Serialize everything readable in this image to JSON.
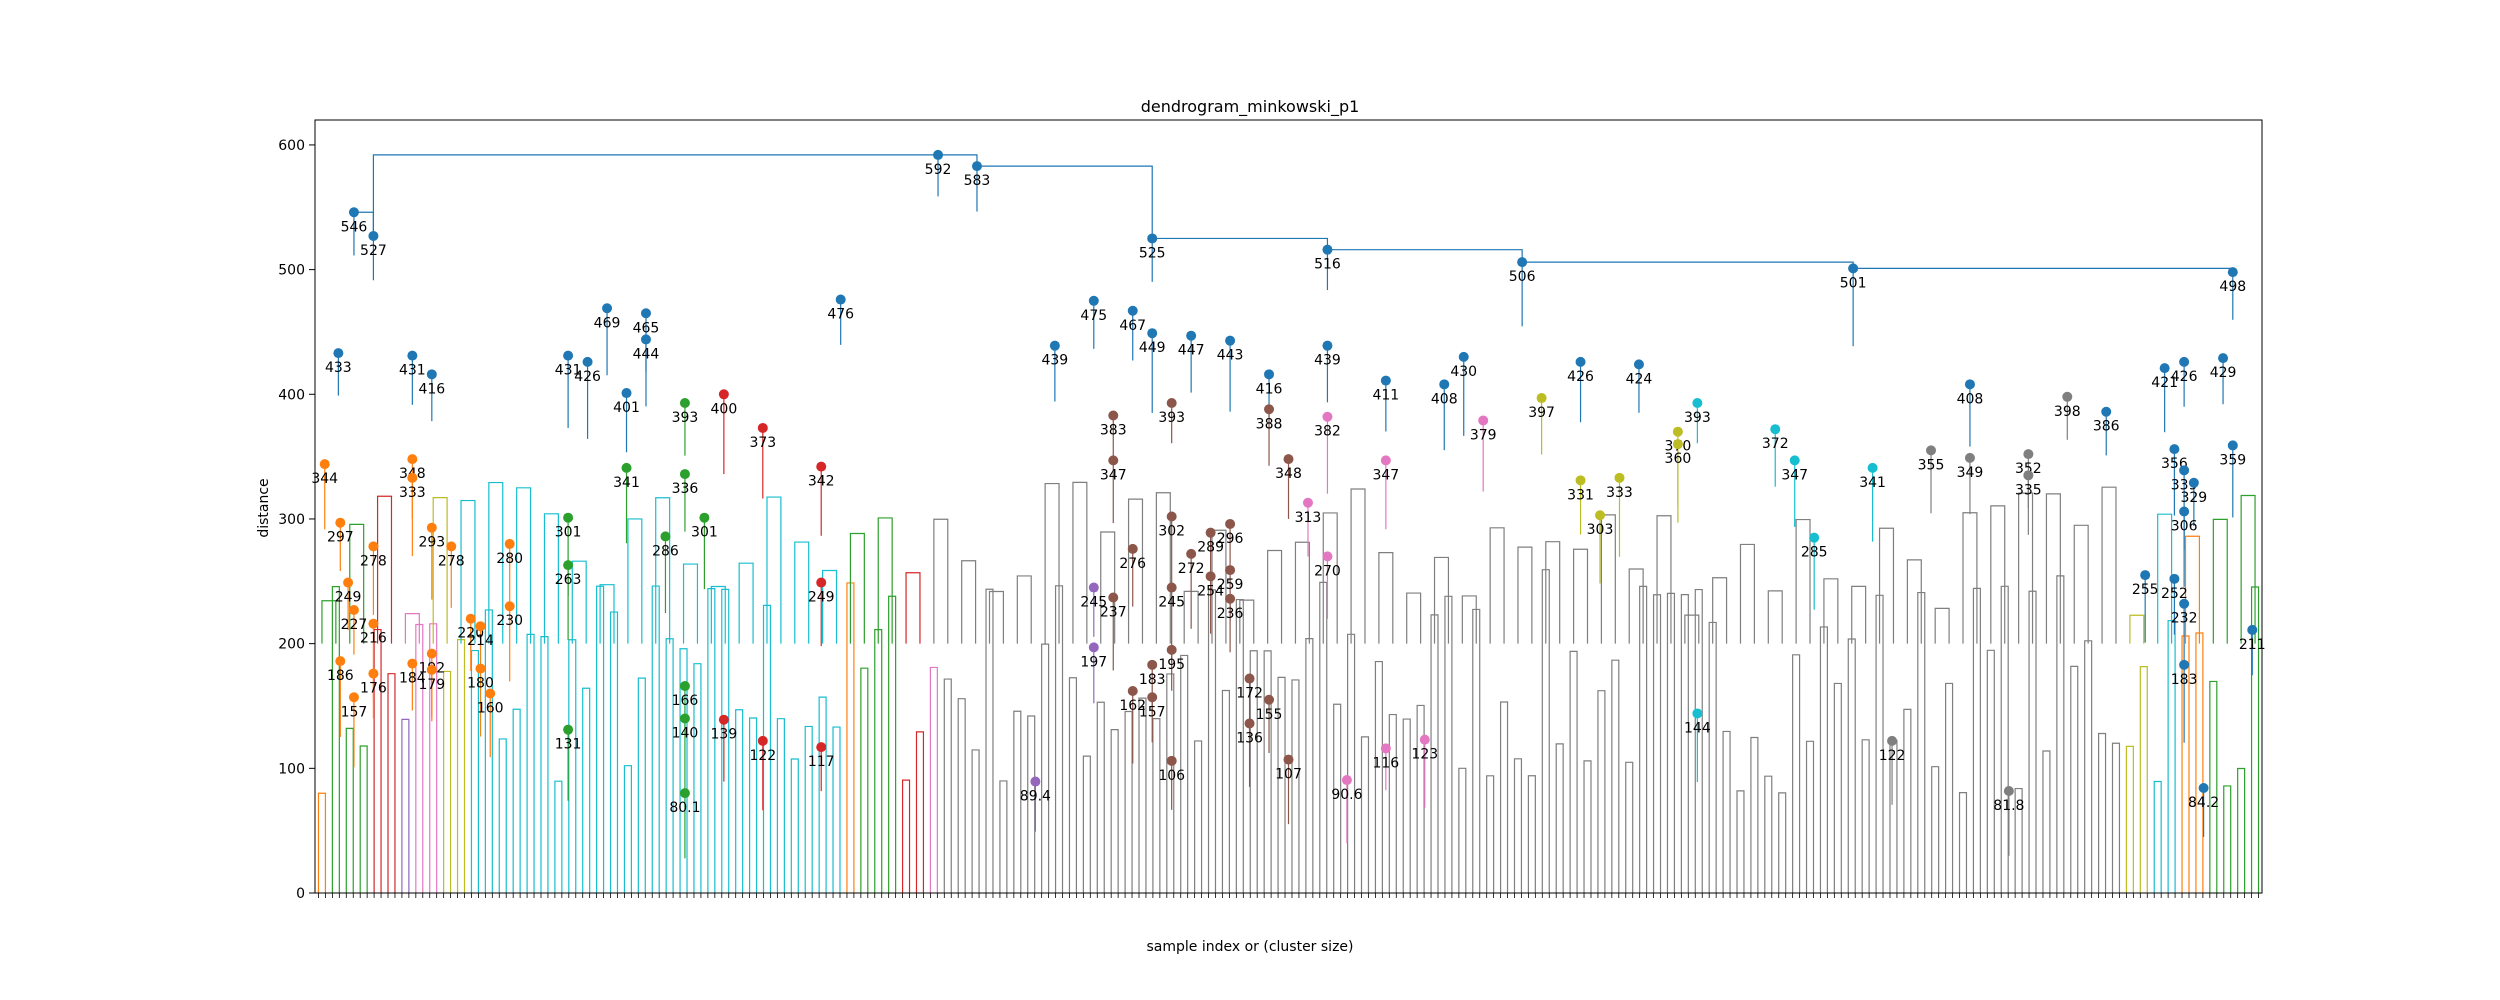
{
  "chart_data": {
    "type": "dendrogram",
    "title": "dendrogram_minkowski_p1",
    "xlabel": "sample index or (cluster size)",
    "ylabel": "distance",
    "ylim": [
      0,
      620
    ],
    "yticks": [
      0,
      100,
      200,
      300,
      400,
      500,
      600
    ],
    "grid": false,
    "leaf_count": 280,
    "annotated_merges": [
      {
        "label": "592",
        "height": 592,
        "x": 0.32
      },
      {
        "label": "583",
        "height": 583,
        "x": 0.34
      },
      {
        "label": "546",
        "height": 546,
        "x": 0.02
      },
      {
        "label": "527",
        "height": 527,
        "x": 0.03
      },
      {
        "label": "525",
        "height": 525,
        "x": 0.43
      },
      {
        "label": "516",
        "height": 516,
        "x": 0.52
      },
      {
        "label": "506",
        "height": 506,
        "x": 0.62
      },
      {
        "label": "501",
        "height": 501,
        "x": 0.79
      },
      {
        "label": "498",
        "height": 498,
        "x": 0.985
      },
      {
        "label": "476",
        "height": 476,
        "x": 0.27
      },
      {
        "label": "475",
        "height": 475,
        "x": 0.4
      },
      {
        "label": "469",
        "height": 469,
        "x": 0.15
      },
      {
        "label": "467",
        "height": 467,
        "x": 0.42
      },
      {
        "label": "465",
        "height": 465,
        "x": 0.17
      },
      {
        "label": "449",
        "height": 449,
        "x": 0.43
      },
      {
        "label": "447",
        "height": 447,
        "x": 0.45
      },
      {
        "label": "444",
        "height": 444,
        "x": 0.17
      },
      {
        "label": "443",
        "height": 443,
        "x": 0.47
      },
      {
        "label": "439",
        "height": 439,
        "x": 0.38
      },
      {
        "label": "439",
        "height": 439,
        "x": 0.52
      },
      {
        "label": "433",
        "height": 433,
        "x": 0.012
      },
      {
        "label": "431",
        "height": 431,
        "x": 0.05
      },
      {
        "label": "431",
        "height": 431,
        "x": 0.13
      },
      {
        "label": "430",
        "height": 430,
        "x": 0.59
      },
      {
        "label": "429",
        "height": 429,
        "x": 0.98
      },
      {
        "label": "426",
        "height": 426,
        "x": 0.14
      },
      {
        "label": "426",
        "height": 426,
        "x": 0.65
      },
      {
        "label": "426",
        "height": 426,
        "x": 0.96
      },
      {
        "label": "424",
        "height": 424,
        "x": 0.68
      },
      {
        "label": "421",
        "height": 421,
        "x": 0.95
      },
      {
        "label": "416",
        "height": 416,
        "x": 0.06
      },
      {
        "label": "416",
        "height": 416,
        "x": 0.49
      },
      {
        "label": "411",
        "height": 411,
        "x": 0.55
      },
      {
        "label": "408",
        "height": 408,
        "x": 0.58
      },
      {
        "label": "408",
        "height": 408,
        "x": 0.85
      },
      {
        "label": "401",
        "height": 401,
        "x": 0.16
      },
      {
        "label": "400",
        "height": 400,
        "x": 0.21
      },
      {
        "label": "398",
        "height": 398,
        "x": 0.9
      },
      {
        "label": "397",
        "height": 397,
        "x": 0.63
      },
      {
        "label": "393",
        "height": 393,
        "x": 0.19
      },
      {
        "label": "393",
        "height": 393,
        "x": 0.44
      },
      {
        "label": "393",
        "height": 393,
        "x": 0.71
      },
      {
        "label": "388",
        "height": 388,
        "x": 0.49
      },
      {
        "label": "386",
        "height": 386,
        "x": 0.92
      },
      {
        "label": "383",
        "height": 383,
        "x": 0.41
      },
      {
        "label": "382",
        "height": 382,
        "x": 0.52
      },
      {
        "label": "379",
        "height": 379,
        "x": 0.6
      },
      {
        "label": "373",
        "height": 373,
        "x": 0.23
      },
      {
        "label": "372",
        "height": 372,
        "x": 0.75
      },
      {
        "label": "370",
        "height": 370,
        "x": 0.7
      },
      {
        "label": "360",
        "height": 360,
        "x": 0.7
      },
      {
        "label": "359",
        "height": 359,
        "x": 0.985
      },
      {
        "label": "356",
        "height": 356,
        "x": 0.955
      },
      {
        "label": "355",
        "height": 355,
        "x": 0.83
      },
      {
        "label": "352",
        "height": 352,
        "x": 0.88
      },
      {
        "label": "349",
        "height": 349,
        "x": 0.85
      },
      {
        "label": "348",
        "height": 348,
        "x": 0.05
      },
      {
        "label": "348",
        "height": 348,
        "x": 0.5
      },
      {
        "label": "347",
        "height": 347,
        "x": 0.41
      },
      {
        "label": "347",
        "height": 347,
        "x": 0.55
      },
      {
        "label": "347",
        "height": 347,
        "x": 0.76
      },
      {
        "label": "344",
        "height": 344,
        "x": 0.005
      },
      {
        "label": "342",
        "height": 342,
        "x": 0.26
      },
      {
        "label": "341",
        "height": 341,
        "x": 0.16
      },
      {
        "label": "341",
        "height": 341,
        "x": 0.8
      },
      {
        "label": "339",
        "height": 339,
        "x": 0.96
      },
      {
        "label": "336",
        "height": 336,
        "x": 0.19
      },
      {
        "label": "335",
        "height": 335,
        "x": 0.88
      },
      {
        "label": "333",
        "height": 333,
        "x": 0.05
      },
      {
        "label": "333",
        "height": 333,
        "x": 0.67
      },
      {
        "label": "331",
        "height": 331,
        "x": 0.65
      },
      {
        "label": "329",
        "height": 329,
        "x": 0.965
      },
      {
        "label": "313",
        "height": 313,
        "x": 0.51
      },
      {
        "label": "306",
        "height": 306,
        "x": 0.96
      },
      {
        "label": "303",
        "height": 303,
        "x": 0.66
      },
      {
        "label": "302",
        "height": 302,
        "x": 0.44
      },
      {
        "label": "301",
        "height": 301,
        "x": 0.13
      },
      {
        "label": "301",
        "height": 301,
        "x": 0.2
      },
      {
        "label": "297",
        "height": 297,
        "x": 0.013
      },
      {
        "label": "296",
        "height": 296,
        "x": 0.47
      },
      {
        "label": "293",
        "height": 293,
        "x": 0.06
      },
      {
        "label": "289",
        "height": 289,
        "x": 0.46
      },
      {
        "label": "286",
        "height": 286,
        "x": 0.18
      },
      {
        "label": "285",
        "height": 285,
        "x": 0.77
      },
      {
        "label": "280",
        "height": 280,
        "x": 0.1
      },
      {
        "label": "278",
        "height": 278,
        "x": 0.03
      },
      {
        "label": "278",
        "height": 278,
        "x": 0.07
      },
      {
        "label": "276",
        "height": 276,
        "x": 0.42
      },
      {
        "label": "272",
        "height": 272,
        "x": 0.45
      },
      {
        "label": "270",
        "height": 270,
        "x": 0.52
      },
      {
        "label": "263",
        "height": 263,
        "x": 0.13
      },
      {
        "label": "259",
        "height": 259,
        "x": 0.47
      },
      {
        "label": "255",
        "height": 255,
        "x": 0.94
      },
      {
        "label": "254",
        "height": 254,
        "x": 0.46
      },
      {
        "label": "252",
        "height": 252,
        "x": 0.955
      },
      {
        "label": "249",
        "height": 249,
        "x": 0.017
      },
      {
        "label": "249",
        "height": 249,
        "x": 0.26
      },
      {
        "label": "245",
        "height": 245,
        "x": 0.4
      },
      {
        "label": "245",
        "height": 245,
        "x": 0.44
      },
      {
        "label": "237",
        "height": 237,
        "x": 0.41
      },
      {
        "label": "236",
        "height": 236,
        "x": 0.47
      },
      {
        "label": "232",
        "height": 232,
        "x": 0.96
      },
      {
        "label": "230",
        "height": 230,
        "x": 0.1
      },
      {
        "label": "227",
        "height": 227,
        "x": 0.02
      },
      {
        "label": "220",
        "height": 220,
        "x": 0.08
      },
      {
        "label": "216",
        "height": 216,
        "x": 0.03
      },
      {
        "label": "214",
        "height": 214,
        "x": 0.085
      },
      {
        "label": "211",
        "height": 211,
        "x": 0.995
      },
      {
        "label": "197",
        "height": 197,
        "x": 0.4
      },
      {
        "label": "195",
        "height": 195,
        "x": 0.44
      },
      {
        "label": "192",
        "height": 192,
        "x": 0.06
      },
      {
        "label": "186",
        "height": 186,
        "x": 0.013
      },
      {
        "label": "184",
        "height": 184,
        "x": 0.05
      },
      {
        "label": "183",
        "height": 183,
        "x": 0.43
      },
      {
        "label": "183",
        "height": 183,
        "x": 0.96
      },
      {
        "label": "180",
        "height": 180,
        "x": 0.085
      },
      {
        "label": "179",
        "height": 179,
        "x": 0.06
      },
      {
        "label": "176",
        "height": 176,
        "x": 0.03
      },
      {
        "label": "172",
        "height": 172,
        "x": 0.48
      },
      {
        "label": "166",
        "height": 166,
        "x": 0.19
      },
      {
        "label": "162",
        "height": 162,
        "x": 0.42
      },
      {
        "label": "160",
        "height": 160,
        "x": 0.09
      },
      {
        "label": "157",
        "height": 157,
        "x": 0.02
      },
      {
        "label": "157",
        "height": 157,
        "x": 0.43
      },
      {
        "label": "155",
        "height": 155,
        "x": 0.49
      },
      {
        "label": "144",
        "height": 144,
        "x": 0.71
      },
      {
        "label": "140",
        "height": 140,
        "x": 0.19
      },
      {
        "label": "139",
        "height": 139,
        "x": 0.21
      },
      {
        "label": "136",
        "height": 136,
        "x": 0.48
      },
      {
        "label": "131",
        "height": 131,
        "x": 0.13
      },
      {
        "label": "123",
        "height": 123,
        "x": 0.57
      },
      {
        "label": "122",
        "height": 122,
        "x": 0.23
      },
      {
        "label": "122",
        "height": 122,
        "x": 0.81
      },
      {
        "label": "117",
        "height": 117,
        "x": 0.26
      },
      {
        "label": "116",
        "height": 116,
        "x": 0.55
      },
      {
        "label": "107",
        "height": 107,
        "x": 0.5
      },
      {
        "label": "106",
        "height": 106,
        "x": 0.44
      },
      {
        "label": "90.6",
        "height": 90.6,
        "x": 0.53
      },
      {
        "label": "89.4",
        "height": 89.4,
        "x": 0.37
      },
      {
        "label": "84.2",
        "height": 84.2,
        "x": 0.97
      },
      {
        "label": "81.8",
        "height": 81.8,
        "x": 0.87
      },
      {
        "label": "80.1",
        "height": 80.1,
        "x": 0.19
      }
    ],
    "cluster_colors": [
      "#ff7f0e",
      "#2ca02c",
      "#d62728",
      "#9467bd",
      "#8c564b",
      "#e377c2",
      "#bcbd22",
      "#17becf",
      "#7f7f7f",
      "#1f77b4"
    ],
    "link_color_above_threshold": "#1f77b4"
  }
}
